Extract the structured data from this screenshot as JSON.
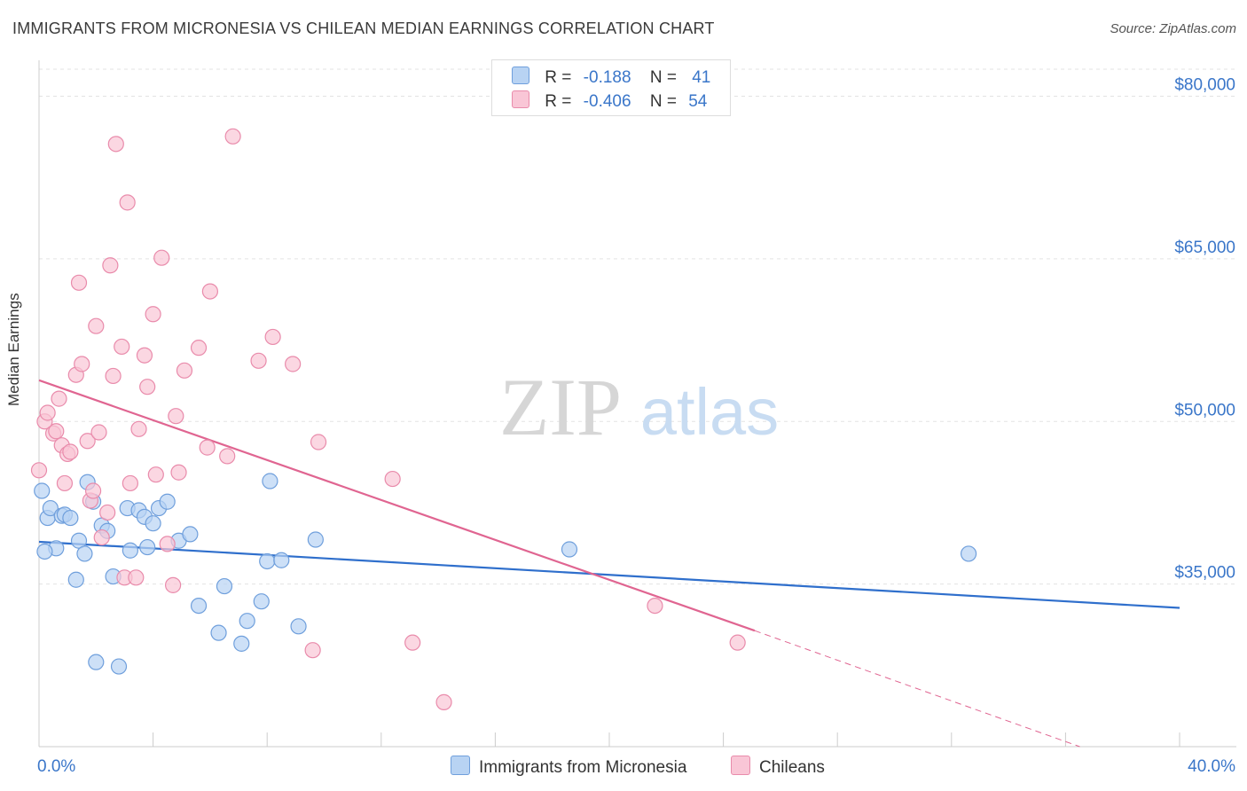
{
  "title": "IMMIGRANTS FROM MICRONESIA VS CHILEAN MEDIAN EARNINGS CORRELATION CHART",
  "source": "Source: ZipAtlas.com",
  "watermark": {
    "zip": "ZIP",
    "atlas": "atlas"
  },
  "colors": {
    "blue_fill": "#b8d3f3",
    "blue_stroke": "#6f9fdc",
    "blue_line": "#2f6fcc",
    "pink_fill": "#f9c6d6",
    "pink_stroke": "#e98bab",
    "pink_line": "#e06591",
    "tick_label": "#3a76c9",
    "grid": "#e3e3e3"
  },
  "legend": {
    "rows": [
      {
        "r_label": "R =",
        "r_value": "-0.188",
        "n_label": "N =",
        "n_value": "41"
      },
      {
        "r_label": "R =",
        "r_value": "-0.406",
        "n_label": "N =",
        "n_value": "54"
      }
    ]
  },
  "bottom_legend": {
    "series1": "Immigrants from Micronesia",
    "series2": "Chileans"
  },
  "chart_data": {
    "type": "scatter",
    "title": "IMMIGRANTS FROM MICRONESIA VS CHILEAN MEDIAN EARNINGS CORRELATION CHART",
    "xlabel": "",
    "ylabel": "Median Earnings",
    "x_ticks": [
      "0.0%",
      "40.0%"
    ],
    "y_ticks": [
      {
        "value": 35000,
        "label": "$35,000"
      },
      {
        "value": 50000,
        "label": "$50,000"
      },
      {
        "value": 65000,
        "label": "$65,000"
      },
      {
        "value": 80000,
        "label": "$80,000"
      }
    ],
    "xlim": [
      0,
      40
    ],
    "ylim": [
      20000,
      82500
    ],
    "grid": true,
    "legend_position": "top-center",
    "series": [
      {
        "name": "Immigrants from Micronesia",
        "color": "#6f9fdc",
        "r": -0.188,
        "n": 41,
        "trend": {
          "x": [
            0,
            40
          ],
          "y": [
            38900,
            32800
          ]
        },
        "points": [
          [
            0.1,
            43600
          ],
          [
            0.3,
            41100
          ],
          [
            0.4,
            42000
          ],
          [
            0.6,
            38300
          ],
          [
            0.8,
            41300
          ],
          [
            0.9,
            41400
          ],
          [
            1.1,
            41100
          ],
          [
            1.3,
            35400
          ],
          [
            1.4,
            39000
          ],
          [
            1.6,
            37800
          ],
          [
            1.7,
            44400
          ],
          [
            1.9,
            42600
          ],
          [
            2.0,
            27800
          ],
          [
            2.2,
            40400
          ],
          [
            2.4,
            39900
          ],
          [
            2.6,
            35700
          ],
          [
            2.8,
            27400
          ],
          [
            3.1,
            42000
          ],
          [
            3.2,
            38100
          ],
          [
            3.5,
            41800
          ],
          [
            3.7,
            41200
          ],
          [
            3.8,
            38400
          ],
          [
            4.0,
            40600
          ],
          [
            4.2,
            42000
          ],
          [
            4.5,
            42600
          ],
          [
            4.9,
            39000
          ],
          [
            5.3,
            39600
          ],
          [
            5.6,
            33000
          ],
          [
            6.3,
            30500
          ],
          [
            6.5,
            34800
          ],
          [
            7.1,
            29500
          ],
          [
            7.3,
            31600
          ],
          [
            7.8,
            33400
          ],
          [
            8.0,
            37100
          ],
          [
            8.1,
            44500
          ],
          [
            8.5,
            37200
          ],
          [
            9.1,
            31100
          ],
          [
            9.7,
            39100
          ],
          [
            18.6,
            38200
          ],
          [
            32.6,
            37800
          ],
          [
            0.2,
            38000
          ]
        ]
      },
      {
        "name": "Chileans",
        "color": "#e98bab",
        "r": -0.406,
        "n": 54,
        "trend": {
          "x": [
            0,
            25.1
          ],
          "y": [
            53800,
            30700
          ]
        },
        "trend_dashed": {
          "x": [
            25.1,
            36.5
          ],
          "y": [
            30700,
            20000
          ]
        },
        "points": [
          [
            0.0,
            45500
          ],
          [
            0.2,
            50000
          ],
          [
            0.3,
            50800
          ],
          [
            0.5,
            48900
          ],
          [
            0.6,
            49100
          ],
          [
            0.7,
            52100
          ],
          [
            0.8,
            47800
          ],
          [
            0.9,
            44300
          ],
          [
            1.0,
            47000
          ],
          [
            1.1,
            47200
          ],
          [
            1.3,
            54300
          ],
          [
            1.4,
            62800
          ],
          [
            1.5,
            55300
          ],
          [
            1.7,
            48200
          ],
          [
            1.8,
            42700
          ],
          [
            1.9,
            43600
          ],
          [
            2.0,
            58800
          ],
          [
            2.1,
            49000
          ],
          [
            2.2,
            39300
          ],
          [
            2.4,
            41600
          ],
          [
            2.5,
            64400
          ],
          [
            2.6,
            54200
          ],
          [
            2.7,
            75600
          ],
          [
            2.9,
            56900
          ],
          [
            3.0,
            35600
          ],
          [
            3.1,
            70200
          ],
          [
            3.2,
            44300
          ],
          [
            3.4,
            35600
          ],
          [
            3.5,
            49300
          ],
          [
            3.7,
            56100
          ],
          [
            3.8,
            53200
          ],
          [
            4.0,
            59900
          ],
          [
            4.1,
            45100
          ],
          [
            4.3,
            65100
          ],
          [
            4.5,
            38700
          ],
          [
            4.7,
            34900
          ],
          [
            4.8,
            50500
          ],
          [
            4.9,
            45300
          ],
          [
            5.1,
            54700
          ],
          [
            5.6,
            56800
          ],
          [
            5.9,
            47600
          ],
          [
            6.0,
            62000
          ],
          [
            6.6,
            46800
          ],
          [
            6.8,
            76300
          ],
          [
            7.7,
            55600
          ],
          [
            8.2,
            57800
          ],
          [
            8.9,
            55300
          ],
          [
            9.6,
            28900
          ],
          [
            9.8,
            48100
          ],
          [
            12.4,
            44700
          ],
          [
            13.1,
            29600
          ],
          [
            14.2,
            24100
          ],
          [
            21.6,
            33000
          ],
          [
            24.5,
            29600
          ]
        ]
      }
    ]
  }
}
